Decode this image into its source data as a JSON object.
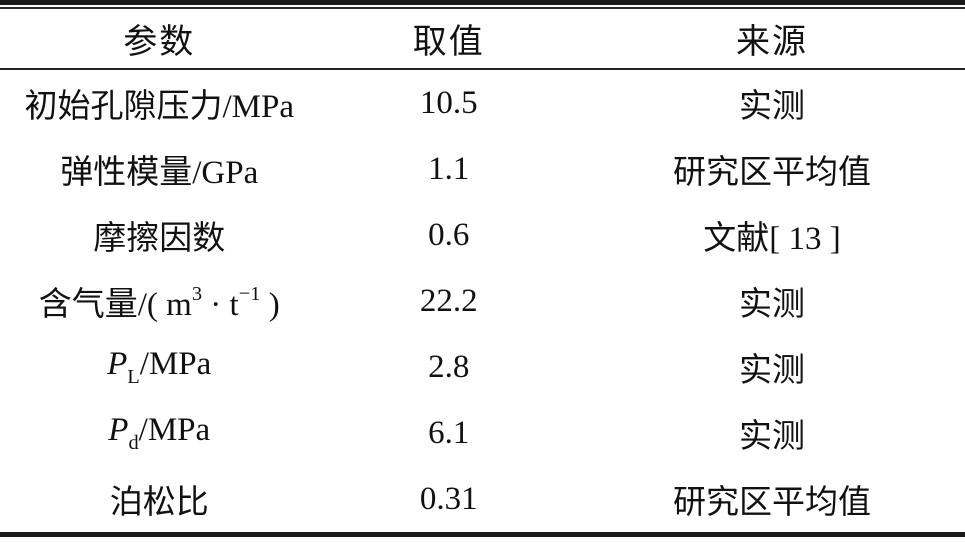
{
  "table": {
    "columns": [
      {
        "label": "参数"
      },
      {
        "label": "取值"
      },
      {
        "label": "来源"
      }
    ],
    "rows": [
      {
        "param": [
          {
            "t": "text",
            "v": "初始孔隙压力/MPa"
          }
        ],
        "value": "10.5",
        "source": "实测"
      },
      {
        "param": [
          {
            "t": "text",
            "v": "弹性模量/GPa"
          }
        ],
        "value": "1.1",
        "source": "研究区平均值"
      },
      {
        "param": [
          {
            "t": "text",
            "v": "摩擦因数"
          }
        ],
        "value": "0.6",
        "source": "文献[ 13 ]"
      },
      {
        "param": [
          {
            "t": "text",
            "v": "含气量/( m"
          },
          {
            "t": "sup",
            "v": "3"
          },
          {
            "t": "text",
            "v": " · t"
          },
          {
            "t": "sup",
            "v": "−1"
          },
          {
            "t": "text",
            "v": " )"
          }
        ],
        "value": "22.2",
        "source": "实测"
      },
      {
        "param": [
          {
            "t": "i",
            "v": "P"
          },
          {
            "t": "sub",
            "v": "L"
          },
          {
            "t": "text",
            "v": "/MPa"
          }
        ],
        "value": "2.8",
        "source": "实测"
      },
      {
        "param": [
          {
            "t": "i",
            "v": "P"
          },
          {
            "t": "sub",
            "v": "d"
          },
          {
            "t": "text",
            "v": "/MPa"
          }
        ],
        "value": "6.1",
        "source": "实测"
      },
      {
        "param": [
          {
            "t": "text",
            "v": "泊松比"
          }
        ],
        "value": "0.31",
        "source": "研究区平均值"
      }
    ],
    "colors": {
      "rule": "#1a1a1a",
      "text": "#111111",
      "background": "#ffffff"
    }
  }
}
